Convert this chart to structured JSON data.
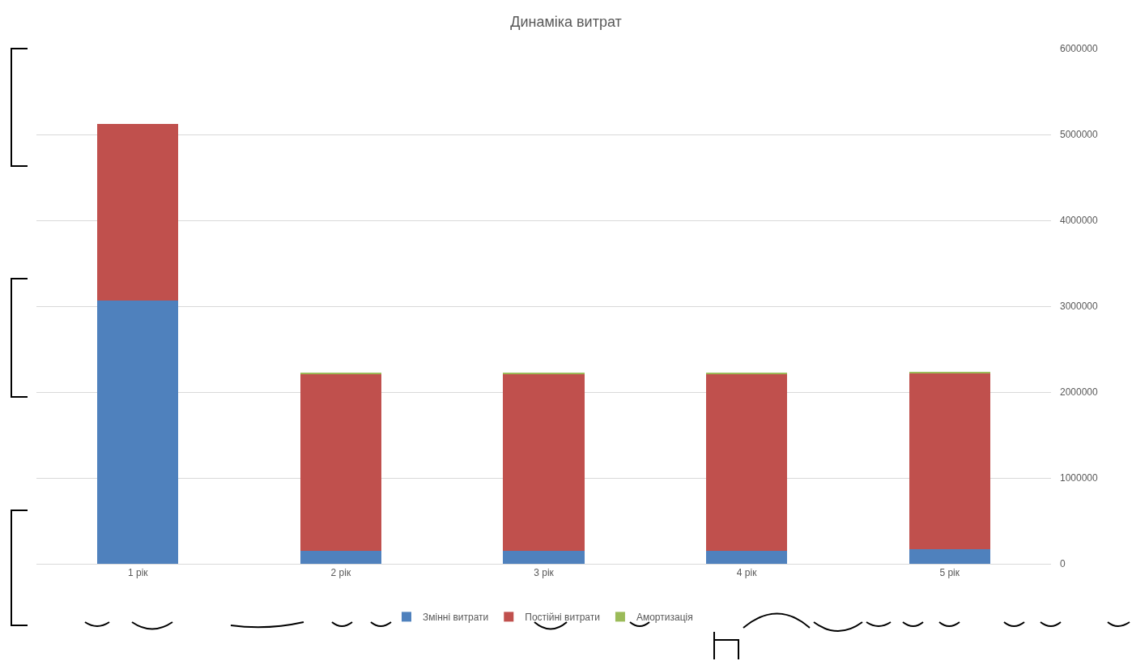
{
  "chart_data": {
    "type": "bar",
    "title": "Динаміка витрат",
    "stacked": true,
    "categories": [
      "1 рік",
      "2 рік",
      "3 рік",
      "4 рік",
      "5 рік"
    ],
    "series": [
      {
        "name": "Змінні витрати",
        "color": "#4f81bd",
        "values": [
          3070000,
          150000,
          150000,
          150000,
          170000
        ]
      },
      {
        "name": "Постійні витрати",
        "color": "#c0504d",
        "values": [
          2050000,
          2060000,
          2060000,
          2060000,
          2050000
        ]
      },
      {
        "name": "Амортизація",
        "color": "#9bbb59",
        "values": [
          0,
          10000,
          10000,
          10000,
          10000
        ]
      }
    ],
    "ylim": [
      0,
      6000000
    ],
    "yticks": [
      0,
      1000000,
      2000000,
      3000000,
      4000000,
      5000000,
      6000000
    ],
    "grid": "y",
    "legend": "bottom"
  }
}
